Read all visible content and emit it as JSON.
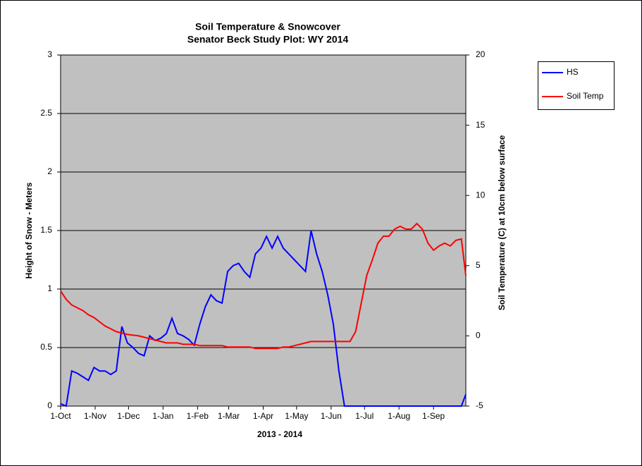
{
  "chart_data": {
    "type": "line",
    "title": "Soil Temperature & Snowcover",
    "subtitle": "Senator Beck Study Plot: WY 2014",
    "xlabel": "2013 - 2014",
    "ylabel": "Height of Snow - Meters",
    "y2label": "Soil Temperature (C) at 10cm below surface",
    "x": [
      "2013-10-01",
      "2013-10-06",
      "2013-10-11",
      "2013-10-16",
      "2013-10-21",
      "2013-10-26",
      "2013-10-31",
      "2013-11-05",
      "2013-11-10",
      "2013-11-15",
      "2013-11-20",
      "2013-11-25",
      "2013-11-30",
      "2013-12-05",
      "2013-12-10",
      "2013-12-15",
      "2013-12-20",
      "2013-12-25",
      "2013-12-30",
      "2014-01-04",
      "2014-01-09",
      "2014-01-14",
      "2014-01-19",
      "2014-01-24",
      "2014-01-29",
      "2014-02-03",
      "2014-02-08",
      "2014-02-13",
      "2014-02-18",
      "2014-02-23",
      "2014-02-28",
      "2014-03-05",
      "2014-03-10",
      "2014-03-15",
      "2014-03-20",
      "2014-03-25",
      "2014-03-30",
      "2014-04-04",
      "2014-04-09",
      "2014-04-14",
      "2014-04-19",
      "2014-04-24",
      "2014-04-29",
      "2014-05-04",
      "2014-05-09",
      "2014-05-14",
      "2014-05-19",
      "2014-05-24",
      "2014-05-29",
      "2014-06-03",
      "2014-06-08",
      "2014-06-13",
      "2014-06-18",
      "2014-06-23",
      "2014-06-28",
      "2014-07-03",
      "2014-07-08",
      "2014-07-13",
      "2014-07-18",
      "2014-07-23",
      "2014-07-28",
      "2014-08-02",
      "2014-08-07",
      "2014-08-12",
      "2014-08-17",
      "2014-08-22",
      "2014-08-27",
      "2014-09-01",
      "2014-09-06",
      "2014-09-11",
      "2014-09-16",
      "2014-09-21",
      "2014-09-26",
      "2014-09-30"
    ],
    "series": [
      {
        "name": "HS",
        "color": "#0000ff",
        "values": [
          0.02,
          0,
          0.3,
          0.28,
          0.25,
          0.22,
          0.33,
          0.3,
          0.3,
          0.27,
          0.3,
          0.68,
          0.54,
          0.5,
          0.45,
          0.43,
          0.6,
          0.56,
          0.58,
          0.62,
          0.75,
          0.62,
          0.6,
          0.57,
          0.52,
          0.7,
          0.85,
          0.95,
          0.9,
          0.88,
          1.15,
          1.2,
          1.22,
          1.15,
          1.1,
          1.3,
          1.35,
          1.45,
          1.35,
          1.45,
          1.35,
          1.3,
          1.25,
          1.2,
          1.15,
          1.5,
          1.3,
          1.15,
          0.95,
          0.7,
          0.3,
          0,
          0,
          0,
          0,
          0,
          0,
          0,
          0,
          0,
          0,
          0,
          0,
          0,
          0,
          0,
          0,
          0,
          0,
          0,
          0,
          0,
          0,
          0.1
        ]
      },
      {
        "name": "Soil Temp",
        "color": "#ff0000",
        "axis": "y2",
        "values": [
          3.2,
          2.6,
          2.2,
          2.0,
          1.8,
          1.5,
          1.3,
          1.0,
          0.7,
          0.5,
          0.3,
          0.2,
          0.1,
          0.05,
          0,
          -0.1,
          -0.2,
          -0.3,
          -0.4,
          -0.5,
          -0.5,
          -0.5,
          -0.6,
          -0.6,
          -0.6,
          -0.7,
          -0.7,
          -0.7,
          -0.7,
          -0.7,
          -0.8,
          -0.8,
          -0.8,
          -0.8,
          -0.8,
          -0.9,
          -0.9,
          -0.9,
          -0.9,
          -0.9,
          -0.8,
          -0.8,
          -0.7,
          -0.6,
          -0.5,
          -0.4,
          -0.4,
          -0.4,
          -0.4,
          -0.4,
          -0.4,
          -0.4,
          -0.4,
          0.3,
          2.3,
          4.3,
          5.4,
          6.6,
          7.1,
          7.1,
          7.6,
          7.8,
          7.6,
          7.6,
          8.0,
          7.6,
          6.6,
          6.1,
          6.4,
          6.6,
          6.4,
          6.8,
          6.9,
          4.3
        ]
      }
    ],
    "xlim": [
      "2013-10-01",
      "2014-09-30"
    ],
    "xticks": [
      {
        "value": "2013-10-01",
        "label": "1-Oct"
      },
      {
        "value": "2013-11-01",
        "label": "1-Nov"
      },
      {
        "value": "2013-12-01",
        "label": "1-Dec"
      },
      {
        "value": "2014-01-01",
        "label": "1-Jan"
      },
      {
        "value": "2014-02-01",
        "label": "1-Feb"
      },
      {
        "value": "2014-03-01",
        "label": "1-Mar"
      },
      {
        "value": "2014-04-01",
        "label": "1-Apr"
      },
      {
        "value": "2014-05-01",
        "label": "1-May"
      },
      {
        "value": "2014-06-01",
        "label": "1-Jun"
      },
      {
        "value": "2014-07-01",
        "label": "1-Jul"
      },
      {
        "value": "2014-08-01",
        "label": "1-Aug"
      },
      {
        "value": "2014-09-01",
        "label": "1-Sep"
      }
    ],
    "ylim": [
      0,
      3
    ],
    "yticks": [
      0,
      0.5,
      1,
      1.5,
      2,
      2.5,
      3
    ],
    "y2lim": [
      -5,
      20
    ],
    "y2ticks": [
      -5,
      0,
      5,
      10,
      15,
      20
    ],
    "grid": true,
    "legend": "right",
    "background": "#c0c0c0"
  }
}
